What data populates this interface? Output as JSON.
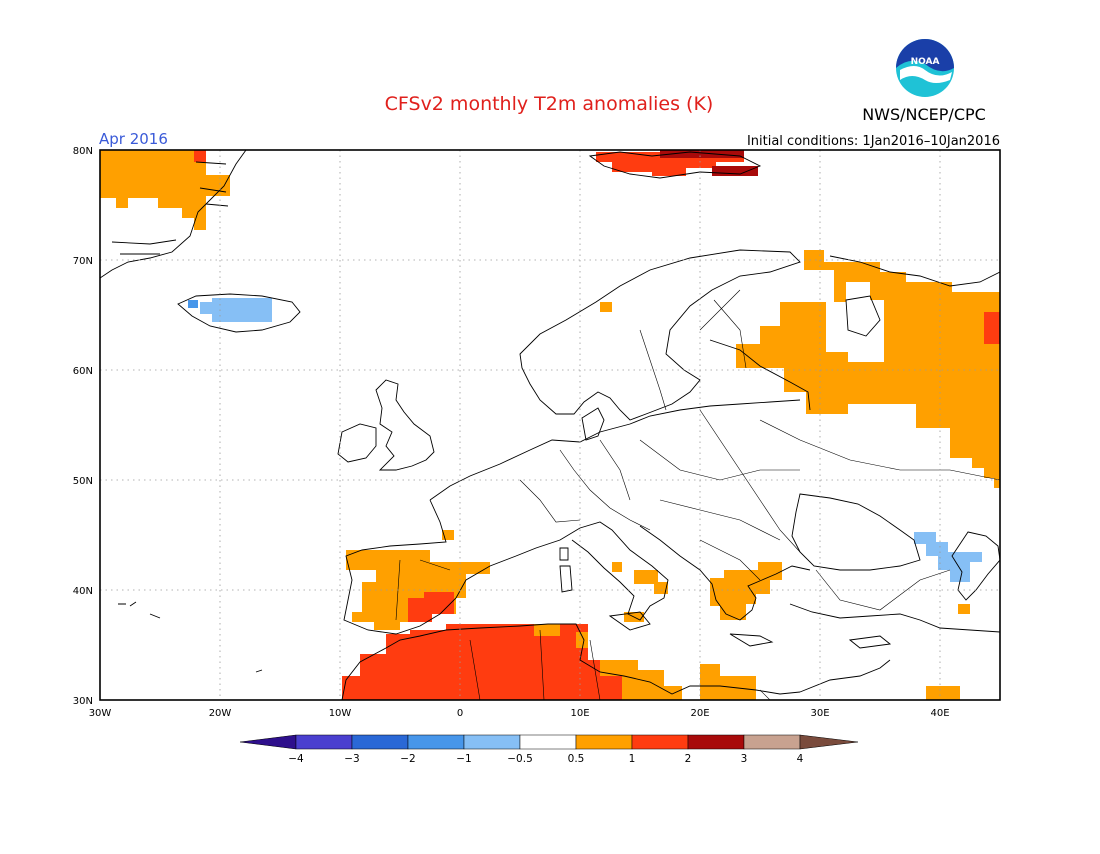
{
  "title": "CFSv2 monthly T2m anomalies (K)",
  "valid_month": "Apr 2016",
  "initial_conditions": "Initial conditions: 1Jan2016–10Jan2016",
  "agency": "NWS/NCEP/CPC",
  "logo_text": "NOAA",
  "colors": {
    "title": "#e0201c",
    "month": "#3a5ad8",
    "lt_-4": "#2e0f8c",
    "-4_-3": "#4a3fcf",
    "-3_-2": "#2a68d6",
    "-2_-1": "#4796ea",
    "-1_-0.5": "#86bff5",
    "-0.5_0.5": "#ffffff",
    "0.5_1": "#ffa000",
    "1_2": "#ff3c10",
    "2_3": "#a80a0a",
    "3_4": "#c8a290",
    "gt_4": "#7a4b3c"
  },
  "lat_ticks": [
    "80N",
    "70N",
    "60N",
    "50N",
    "40N",
    "30N"
  ],
  "lon_ticks": [
    "30W",
    "20W",
    "10W",
    "0",
    "10E",
    "20E",
    "30E",
    "40E"
  ],
  "colorbar_ticks": [
    "−4",
    "−3",
    "−2",
    "−1",
    "−0.5",
    "0.5",
    "1",
    "2",
    "3",
    "4"
  ],
  "map": {
    "lon_range": [
      -30,
      45
    ],
    "lat_range": [
      30,
      80
    ],
    "anomaly_regions": [
      {
        "region": "Greenland east coast",
        "class": "0.5_1"
      },
      {
        "region": "Svalbard",
        "class": "1_2"
      },
      {
        "region": "Svalbard northeast",
        "class": "2_3"
      },
      {
        "region": "Iceland",
        "class": "-1_-0.5"
      },
      {
        "region": "Western Russia",
        "class": "0.5_1"
      },
      {
        "region": "Iberia",
        "class": "0.5_1"
      },
      {
        "region": "Southeast Spain",
        "class": "1_2"
      },
      {
        "region": "North Africa",
        "class": "1_2"
      },
      {
        "region": "Greece",
        "class": "0.5_1"
      },
      {
        "region": "Southern Italy",
        "class": "0.5_1"
      },
      {
        "region": "Libya / Egypt coast",
        "class": "0.5_1"
      },
      {
        "region": "Caucasus",
        "class": "-1_-0.5"
      }
    ]
  }
}
